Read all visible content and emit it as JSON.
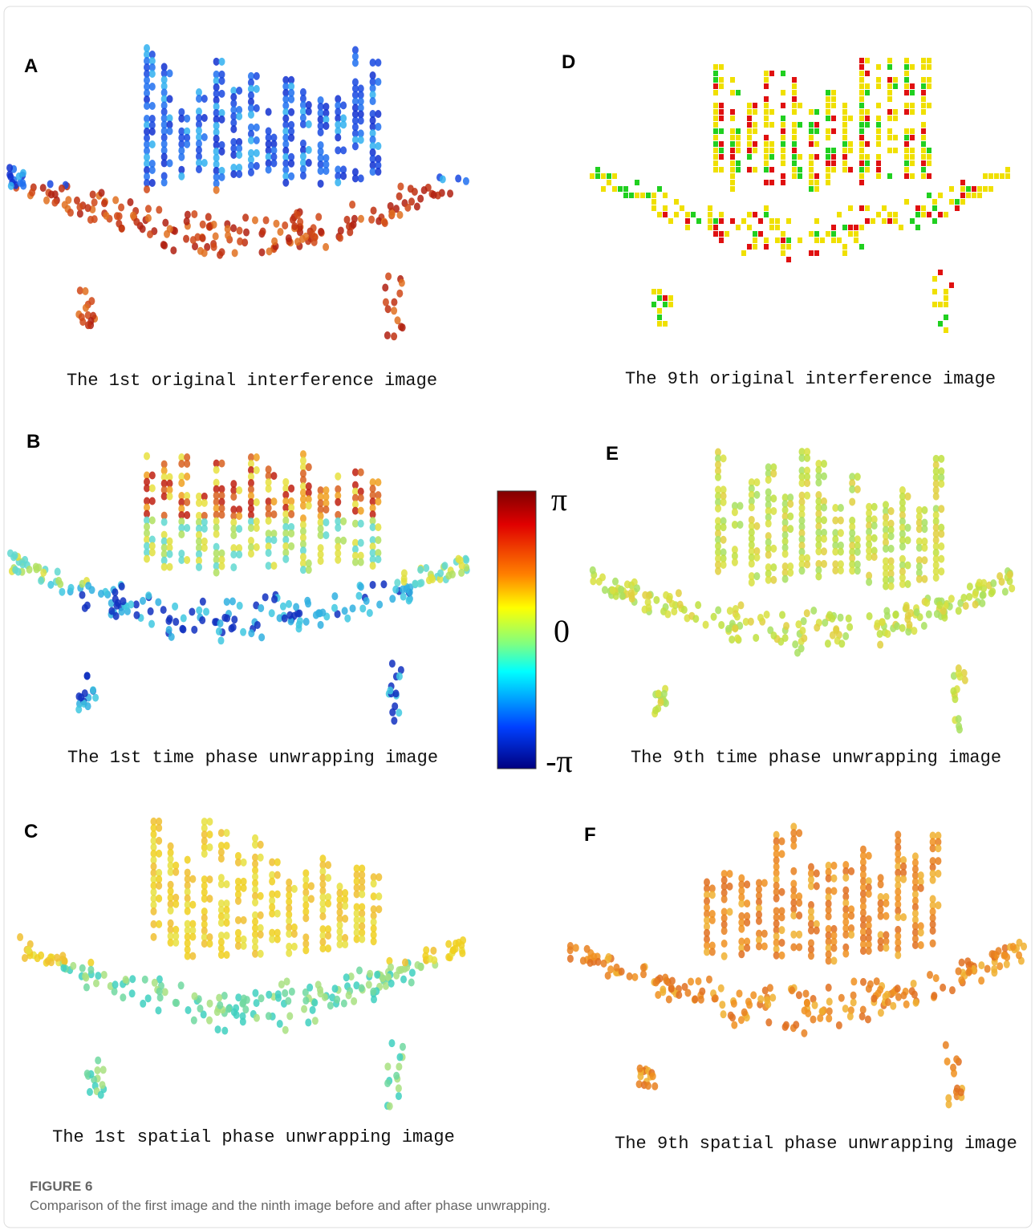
{
  "panels": [
    {
      "letter": "A",
      "caption": "The 1st original interference image"
    },
    {
      "letter": "D",
      "caption": "The 9th original interference image"
    },
    {
      "letter": "B",
      "caption": "The 1st time phase unwrapping image"
    },
    {
      "letter": "E",
      "caption": "The 9th time phase unwrapping image"
    },
    {
      "letter": "C",
      "caption": "The 1st  spatial  phase unwrapping image"
    },
    {
      "letter": "F",
      "caption": "The 9th spatial  phase unwrapping image"
    }
  ],
  "colorbar": {
    "max_label": "π",
    "mid_label": "0",
    "min_label": "-π"
  },
  "figure": {
    "label": "FIGURE 6",
    "caption": "Comparison of the first image and the ninth image before and after phase unwrapping."
  }
}
